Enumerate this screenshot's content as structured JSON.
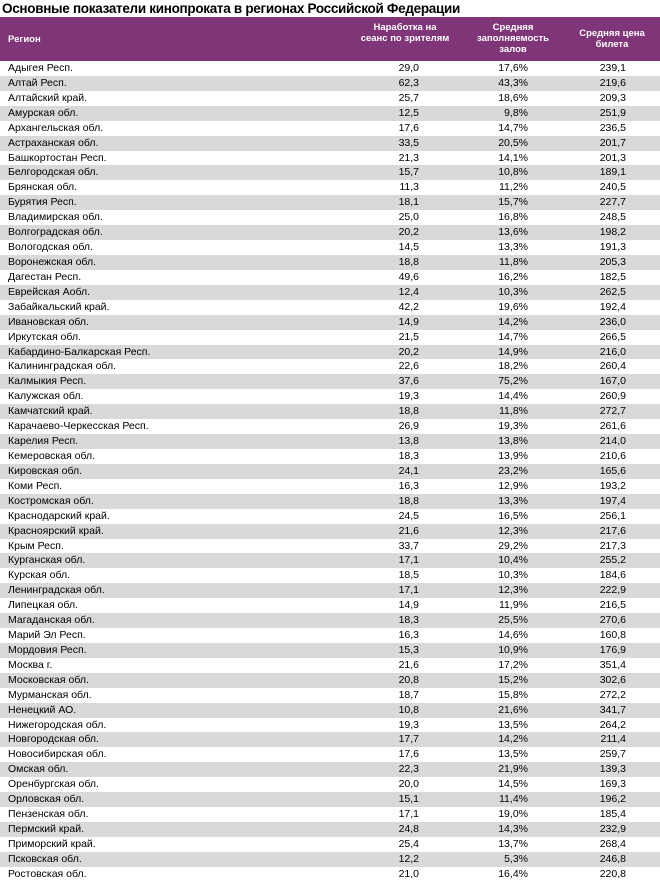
{
  "title": "Основные показатели кинопроката в регионах Российской Федерации",
  "colors": {
    "header_bg": "#7f3577",
    "stripe": "#d9d9d9"
  },
  "table": {
    "headers": [
      "Регион",
      "Наработка на сеанс по зрителям",
      "Средняя заполняемость залов",
      "Средняя цена билета"
    ],
    "rows": [
      [
        "Адыгея Респ.",
        "29,0",
        "17,6%",
        "239,1"
      ],
      [
        "Алтай Респ.",
        "62,3",
        "43,3%",
        "219,6"
      ],
      [
        "Алтайский край.",
        "25,7",
        "18,6%",
        "209,3"
      ],
      [
        "Амурская обл.",
        "12,5",
        "9,8%",
        "251,9"
      ],
      [
        "Архангельская обл.",
        "17,6",
        "14,7%",
        "236,5"
      ],
      [
        "Астраханская обл.",
        "33,5",
        "20,5%",
        "201,7"
      ],
      [
        "Башкортостан Респ.",
        "21,3",
        "14,1%",
        "201,3"
      ],
      [
        "Белгородская обл.",
        "15,7",
        "10,8%",
        "189,1"
      ],
      [
        "Брянская обл.",
        "11,3",
        "11,2%",
        "240,5"
      ],
      [
        "Бурятия Респ.",
        "18,1",
        "15,7%",
        "227,7"
      ],
      [
        "Владимирская обл.",
        "25,0",
        "16,8%",
        "248,5"
      ],
      [
        "Волгоградская обл.",
        "20,2",
        "13,6%",
        "198,2"
      ],
      [
        "Вологодская обл.",
        "14,5",
        "13,3%",
        "191,3"
      ],
      [
        "Воронежская обл.",
        "18,8",
        "11,8%",
        "205,3"
      ],
      [
        "Дагестан Респ.",
        "49,6",
        "16,2%",
        "182,5"
      ],
      [
        "Еврейская Аобл.",
        "12,4",
        "10,3%",
        "262,5"
      ],
      [
        "Забайкальский край.",
        "42,2",
        "19,6%",
        "192,4"
      ],
      [
        "Ивановская обл.",
        "14,9",
        "14,2%",
        "236,0"
      ],
      [
        "Иркутская обл.",
        "21,5",
        "14,7%",
        "266,5"
      ],
      [
        "Кабардино-Балкарская Респ.",
        "20,2",
        "14,9%",
        "216,0"
      ],
      [
        "Калининградская обл.",
        "22,6",
        "18,2%",
        "260,4"
      ],
      [
        "Калмыкия Респ.",
        "37,6",
        "75,2%",
        "167,0"
      ],
      [
        "Калужская обл.",
        "19,3",
        "14,4%",
        "260,9"
      ],
      [
        "Камчатский край.",
        "18,8",
        "11,8%",
        "272,7"
      ],
      [
        "Карачаево-Черкесская Респ.",
        "26,9",
        "19,3%",
        "261,6"
      ],
      [
        "Карелия Респ.",
        "13,8",
        "13,8%",
        "214,0"
      ],
      [
        "Кемеровская обл.",
        "18,3",
        "13,9%",
        "210,6"
      ],
      [
        "Кировская обл.",
        "24,1",
        "23,2%",
        "165,6"
      ],
      [
        "Коми Респ.",
        "16,3",
        "12,9%",
        "193,2"
      ],
      [
        "Костромская обл.",
        "18,8",
        "13,3%",
        "197,4"
      ],
      [
        "Краснодарский край.",
        "24,5",
        "16,5%",
        "256,1"
      ],
      [
        "Красноярский край.",
        "21,6",
        "12,3%",
        "217,6"
      ],
      [
        "Крым Респ.",
        "33,7",
        "29,2%",
        "217,3"
      ],
      [
        "Курганская обл.",
        "17,1",
        "10,4%",
        "255,2"
      ],
      [
        "Курская обл.",
        "18,5",
        "10,3%",
        "184,6"
      ],
      [
        "Ленинградская обл.",
        "17,1",
        "12,3%",
        "222,9"
      ],
      [
        "Липецкая обл.",
        "14,9",
        "11,9%",
        "216,5"
      ],
      [
        "Магаданская обл.",
        "18,3",
        "25,5%",
        "270,6"
      ],
      [
        "Марий Эл Респ.",
        "16,3",
        "14,6%",
        "160,8"
      ],
      [
        "Мордовия Респ.",
        "15,3",
        "10,9%",
        "176,9"
      ],
      [
        "Москва г.",
        "21,6",
        "17,2%",
        "351,4"
      ],
      [
        "Московская обл.",
        "20,8",
        "15,2%",
        "302,6"
      ],
      [
        "Мурманская обл.",
        "18,7",
        "15,8%",
        "272,2"
      ],
      [
        "Ненецкий АО.",
        "10,8",
        "21,6%",
        "341,7"
      ],
      [
        "Нижегородская обл.",
        "19,3",
        "13,5%",
        "264,2"
      ],
      [
        "Новгородская обл.",
        "17,7",
        "14,2%",
        "211,4"
      ],
      [
        "Новосибирская обл.",
        "17,6",
        "13,5%",
        "259,7"
      ],
      [
        "Омская обл.",
        "22,3",
        "21,9%",
        "139,3"
      ],
      [
        "Оренбургская обл.",
        "20,0",
        "14,5%",
        "169,3"
      ],
      [
        "Орловская обл.",
        "15,1",
        "11,4%",
        "196,2"
      ],
      [
        "Пензенская обл.",
        "17,1",
        "19,0%",
        "185,4"
      ],
      [
        "Пермский край.",
        "24,8",
        "14,3%",
        "232,9"
      ],
      [
        "Приморский край.",
        "25,4",
        "13,7%",
        "268,4"
      ],
      [
        "Псковская обл.",
        "12,2",
        "5,3%",
        "246,8"
      ],
      [
        "Ростовская обл.",
        "21,0",
        "16,4%",
        "220,8"
      ]
    ]
  }
}
